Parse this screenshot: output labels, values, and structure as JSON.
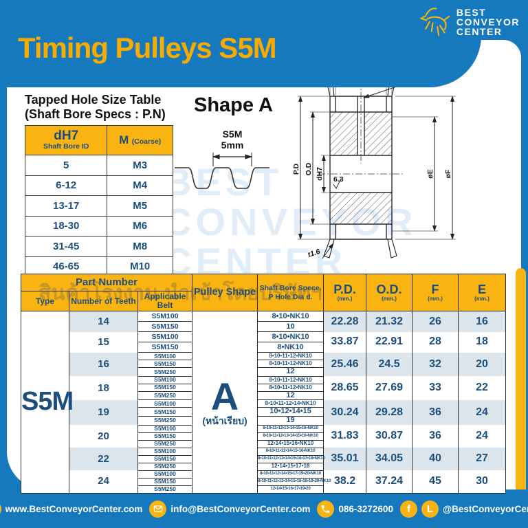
{
  "colors": {
    "blue": "#1678bd",
    "yellow": "#f9b412",
    "navy": "#1b4d7e",
    "row_stripe": "#dde5ec"
  },
  "header": {
    "title": "Timing Pulleys S5M",
    "logo_lines": [
      "BEST",
      "CONVEYOR",
      "CENTER"
    ]
  },
  "tapped_table": {
    "heading_line1": "Tapped Hole Size Table",
    "heading_line2": "(Shaft Bore Specs : P.N)",
    "col1_main": "dH7",
    "col1_sub": "Shaft Bore ID",
    "col2_main": "M",
    "col2_sub": "(Coarse)",
    "rows": [
      [
        "5",
        "M3"
      ],
      [
        "6-12",
        "M4"
      ],
      [
        "13-17",
        "M5"
      ],
      [
        "18-30",
        "M6"
      ],
      [
        "31-45",
        "M8"
      ],
      [
        "46-65",
        "M10"
      ]
    ]
  },
  "shape_section": {
    "title": "Shape A",
    "belt_code": "S5M",
    "pitch": "5mm"
  },
  "drawing": {
    "dim_top_width": "*W",
    "dim_top_a": "*A",
    "dim_side_left": "2.5",
    "dim_side_right": "2.5",
    "dim_half_width": "W/2",
    "dim_tap": "2-M",
    "dim_pd": "P.D",
    "dim_od": "O.D",
    "dim_bore": "dH7",
    "dim_roughness": "6.3",
    "dim_e": "øE",
    "dim_f": "øF",
    "dim_flange": "t1.6"
  },
  "main_table": {
    "headers": {
      "part_number": "Part Number",
      "type": "Type",
      "teeth": "Number of Teeth",
      "belt": "Applicable Belt",
      "shape": "Pulley Shape",
      "bore_line1": "Shaft Bore Spece.",
      "bore_line2": "P Hole Dia d.",
      "pd": "P.D.",
      "od": "O.D.",
      "f": "F",
      "e": "E",
      "unit": "(mm.)"
    },
    "type_value": "S5M",
    "pulley_shape_value": "A",
    "pulley_shape_note": "(หน้าเรียบ)",
    "groups": [
      {
        "teeth": "14",
        "belts": [
          "S5M100",
          "S5M150"
        ],
        "bores": [
          "8•10•NK10",
          "10"
        ],
        "pd": "22.28",
        "od": "21.32",
        "f": "26",
        "e": "16"
      },
      {
        "teeth": "15",
        "belts": [
          "S5M100",
          "S5M150"
        ],
        "bores": [
          "8•10•NK10",
          "8•NK10"
        ],
        "pd": "33.87",
        "od": "22.91",
        "f": "28",
        "e": "18"
      },
      {
        "teeth": "16",
        "belts": [
          "S5M100",
          "S5M150",
          "S5M250"
        ],
        "bores": [
          "8•10•11•12•NK10",
          "8•10•11•12•NK10",
          "12"
        ],
        "pd": "25.46",
        "od": "24.5",
        "f": "32",
        "e": "20"
      },
      {
        "teeth": "18",
        "belts": [
          "S5M100",
          "S5M150",
          "S5M250"
        ],
        "bores": [
          "8•10•11•12•NK10",
          "8•10•11•12•NK10",
          "12"
        ],
        "pd": "28.65",
        "od": "27.69",
        "f": "33",
        "e": "22"
      },
      {
        "teeth": "19",
        "belts": [
          "S5M100",
          "S5M150",
          "S5M250"
        ],
        "bores": [
          "8•10•11•12•14•NK10",
          "10•12•14•15",
          "19"
        ],
        "pd": "30.24",
        "od": "29.28",
        "f": "36",
        "e": "24"
      },
      {
        "teeth": "20",
        "belts": [
          "S5M100",
          "S5M150",
          "S5M250"
        ],
        "bores": [
          "8•10•11•12•13•14•15•16•NK10",
          "8•10•11•12•13•14•15•16•NK10",
          "12•14•15•16•NK10"
        ],
        "pd": "31.83",
        "od": "30.87",
        "f": "36",
        "e": "24"
      },
      {
        "teeth": "22",
        "belts": [
          "S5M100",
          "S5M150",
          "S5M250"
        ],
        "bores": [
          "8•10•11•12•14•15•16•NK10",
          "8•10•11•12•13•14•15•16•17•18•NK10",
          "12•14•15•17•18"
        ],
        "pd": "35.01",
        "od": "34.05",
        "f": "40",
        "e": "27"
      },
      {
        "teeth": "24",
        "belts": [
          "S5M100",
          "S5M150",
          "S5M250"
        ],
        "bores": [
          "8•10•11•12•14•15•17•19•20•NK10",
          "8•10•11•12•13•14•15•16•18•19•20•NK10",
          "12•14•15•16•17•19•20"
        ],
        "pd": "38.2",
        "od": "37.24",
        "f": "45",
        "e": "30"
      }
    ]
  },
  "watermarks": {
    "thai_text": "สินค้าโรงงาน นำเข้าโดยบริษัทฯ"
  },
  "footer": {
    "website": "www.BestConveyorCenter.com",
    "email": "info@BestConveyorCenter.com",
    "phone": "086-3272600",
    "social_handle": "@BestConveyorCenter"
  }
}
